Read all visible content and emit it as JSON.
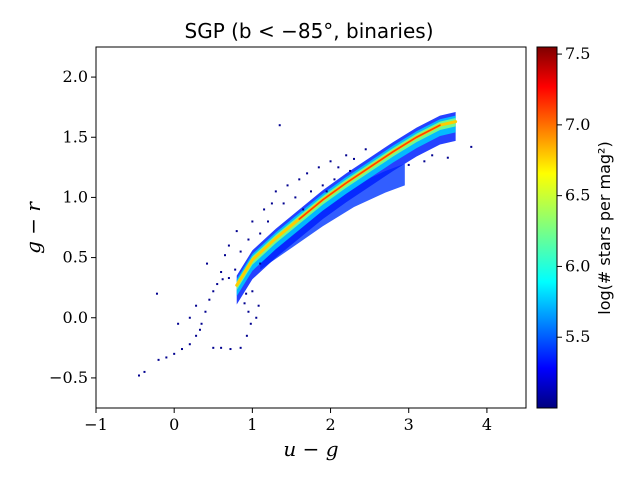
{
  "chart_data": {
    "type": "heatmap",
    "title": "SGP (b < −85°, binaries)",
    "xlabel": "u − g",
    "ylabel": "g − r",
    "xlim": [
      -1,
      4.5
    ],
    "ylim": [
      -0.75,
      2.25
    ],
    "xticks": [
      -1,
      0,
      1,
      2,
      3,
      4
    ],
    "yticks": [
      -0.5,
      0.0,
      0.5,
      1.0,
      1.5,
      2.0
    ],
    "xtick_labels": [
      "−1",
      "0",
      "1",
      "2",
      "3",
      "4"
    ],
    "ytick_labels": [
      "−0.5",
      "0.0",
      "0.5",
      "1.0",
      "1.5",
      "2.0"
    ],
    "grid": false,
    "colormap": "jet",
    "colorbar": {
      "label": "log(# stars per mag²)",
      "range": [
        5.0,
        7.55
      ],
      "ticks": [
        5.5,
        6.0,
        6.5,
        7.0,
        7.5
      ],
      "tick_labels": [
        "5.5",
        "6.0",
        "6.5",
        "7.0",
        "7.5"
      ]
    },
    "density_ridge": {
      "x": [
        0.8,
        1.0,
        1.3,
        1.6,
        1.9,
        2.2,
        2.5,
        2.8,
        3.1,
        3.4,
        3.6
      ],
      "y": [
        0.27,
        0.48,
        0.66,
        0.82,
        0.98,
        1.12,
        1.25,
        1.38,
        1.5,
        1.6,
        1.63
      ]
    },
    "secondary_sequence": {
      "x": [
        1.1,
        1.5,
        1.9,
        2.3,
        2.7,
        2.95
      ],
      "y": [
        0.5,
        0.68,
        0.86,
        1.02,
        1.14,
        1.2
      ]
    },
    "sparse_points": [
      [
        -0.45,
        -0.48
      ],
      [
        -0.38,
        -0.45
      ],
      [
        -0.2,
        -0.35
      ],
      [
        -0.1,
        -0.33
      ],
      [
        0.0,
        -0.3
      ],
      [
        0.1,
        -0.26
      ],
      [
        0.2,
        -0.22
      ],
      [
        0.28,
        -0.15
      ],
      [
        0.35,
        -0.05
      ],
      [
        0.4,
        0.05
      ],
      [
        0.45,
        0.15
      ],
      [
        0.5,
        0.22
      ],
      [
        0.55,
        0.28
      ],
      [
        0.62,
        0.32
      ],
      [
        0.7,
        0.33
      ],
      [
        -0.22,
        0.2
      ],
      [
        0.05,
        -0.05
      ],
      [
        0.2,
        0.0
      ],
      [
        0.28,
        0.1
      ],
      [
        0.33,
        -0.1
      ],
      [
        0.5,
        -0.25
      ],
      [
        0.6,
        -0.25
      ],
      [
        0.72,
        -0.26
      ],
      [
        0.85,
        -0.25
      ],
      [
        0.93,
        -0.15
      ],
      [
        0.98,
        -0.05
      ],
      [
        1.05,
        0.0
      ],
      [
        1.08,
        0.1
      ],
      [
        0.95,
        0.05
      ],
      [
        0.9,
        0.12
      ],
      [
        0.92,
        0.2
      ],
      [
        1.0,
        0.22
      ],
      [
        0.42,
        0.45
      ],
      [
        0.6,
        0.38
      ],
      [
        0.65,
        0.52
      ],
      [
        0.7,
        0.6
      ],
      [
        0.8,
        0.72
      ],
      [
        0.85,
        0.55
      ],
      [
        0.95,
        0.65
      ],
      [
        1.0,
        0.8
      ],
      [
        1.1,
        0.7
      ],
      [
        1.15,
        0.9
      ],
      [
        1.2,
        0.8
      ],
      [
        1.25,
        0.95
      ],
      [
        1.3,
        1.05
      ],
      [
        1.4,
        0.95
      ],
      [
        1.45,
        1.1
      ],
      [
        1.55,
        1.0
      ],
      [
        1.6,
        1.15
      ],
      [
        1.7,
        1.2
      ],
      [
        1.75,
        1.05
      ],
      [
        1.85,
        1.25
      ],
      [
        1.9,
        1.1
      ],
      [
        2.0,
        1.3
      ],
      [
        2.1,
        1.25
      ],
      [
        2.2,
        1.35
      ],
      [
        2.3,
        1.32
      ],
      [
        2.45,
        1.4
      ],
      [
        1.35,
        1.6
      ],
      [
        3.8,
        1.42
      ],
      [
        3.5,
        1.33
      ],
      [
        3.2,
        1.3
      ],
      [
        3.0,
        1.27
      ],
      [
        3.3,
        1.35
      ],
      [
        1.1,
        0.45
      ],
      [
        0.78,
        0.4
      ],
      [
        1.65,
        0.9
      ],
      [
        1.95,
        1.05
      ],
      [
        2.05,
        1.15
      ],
      [
        2.25,
        1.22
      ]
    ]
  }
}
